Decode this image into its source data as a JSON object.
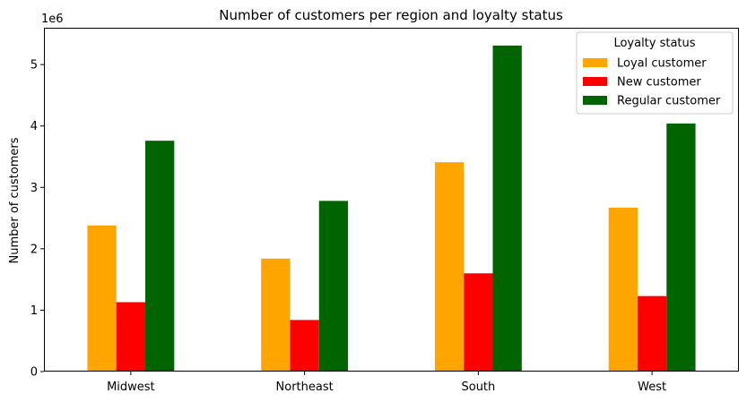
{
  "chart_data": {
    "type": "bar",
    "title": "Number of customers per region and loyalty status",
    "xlabel": "",
    "ylabel": "Number of customers",
    "y_offset_label": "1e6",
    "categories": [
      "Midwest",
      "Northeast",
      "South",
      "West"
    ],
    "series": [
      {
        "name": "Loyal customer",
        "color": "#FFA500",
        "values": [
          2380000,
          1840000,
          3410000,
          2670000
        ]
      },
      {
        "name": "New customer",
        "color": "#FF0000",
        "values": [
          1130000,
          840000,
          1600000,
          1230000
        ]
      },
      {
        "name": "Regular customer",
        "color": "#006400",
        "values": [
          3760000,
          2780000,
          5310000,
          4040000
        ]
      }
    ],
    "ylim": [
      0,
      5600000
    ],
    "yticks": [
      0,
      1000000,
      2000000,
      3000000,
      4000000,
      5000000
    ],
    "ytick_labels": [
      "0",
      "1",
      "2",
      "3",
      "4",
      "5"
    ],
    "grid": false,
    "legend": {
      "title": "Loyalty status",
      "placement": "top-right"
    }
  }
}
